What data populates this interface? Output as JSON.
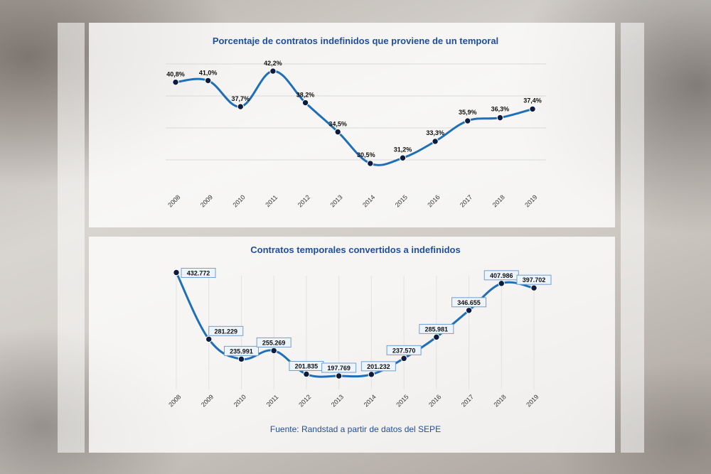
{
  "chart_data": [
    {
      "type": "line",
      "title": "Porcentaje de contratos indefinidos que proviene de un temporal",
      "categories": [
        "2008",
        "2009",
        "2010",
        "2011",
        "2012",
        "2013",
        "2014",
        "2015",
        "2016",
        "2017",
        "2018",
        "2019"
      ],
      "values": [
        40.8,
        41.0,
        37.7,
        42.2,
        38.2,
        34.5,
        30.5,
        31.2,
        33.3,
        35.9,
        36.3,
        37.4
      ],
      "data_labels": [
        "40,8%",
        "41,0%",
        "37,7%",
        "42,2%",
        "38,2%",
        "34,5%",
        "30,5%",
        "31,2%",
        "33,3%",
        "35,9%",
        "36,3%",
        "37,4%"
      ],
      "ylim": [
        26,
        45
      ],
      "grid": true,
      "line_color": "#1f6fb8",
      "point_color": "#0d1b3e"
    },
    {
      "type": "line",
      "title": "Contratos temporales convertidos a indefinidos",
      "categories": [
        "2008",
        "2009",
        "2010",
        "2011",
        "2012",
        "2013",
        "2014",
        "2015",
        "2016",
        "2017",
        "2018",
        "2019"
      ],
      "values": [
        432772,
        281229,
        235991,
        255269,
        201835,
        197769,
        201232,
        237570,
        285981,
        346655,
        407986,
        397702
      ],
      "data_labels": [
        "432.772",
        "281.229",
        "235.991",
        "255.269",
        "201.835",
        "197.769",
        "201.232",
        "237.570",
        "285.981",
        "346.655",
        "407.986",
        "397.702"
      ],
      "ylim": [
        180000,
        440000
      ],
      "grid": true,
      "line_color": "#1f6fb8",
      "point_color": "#0d1b3e"
    }
  ],
  "source": "Fuente: Randstad a partir de datos del SEPE"
}
